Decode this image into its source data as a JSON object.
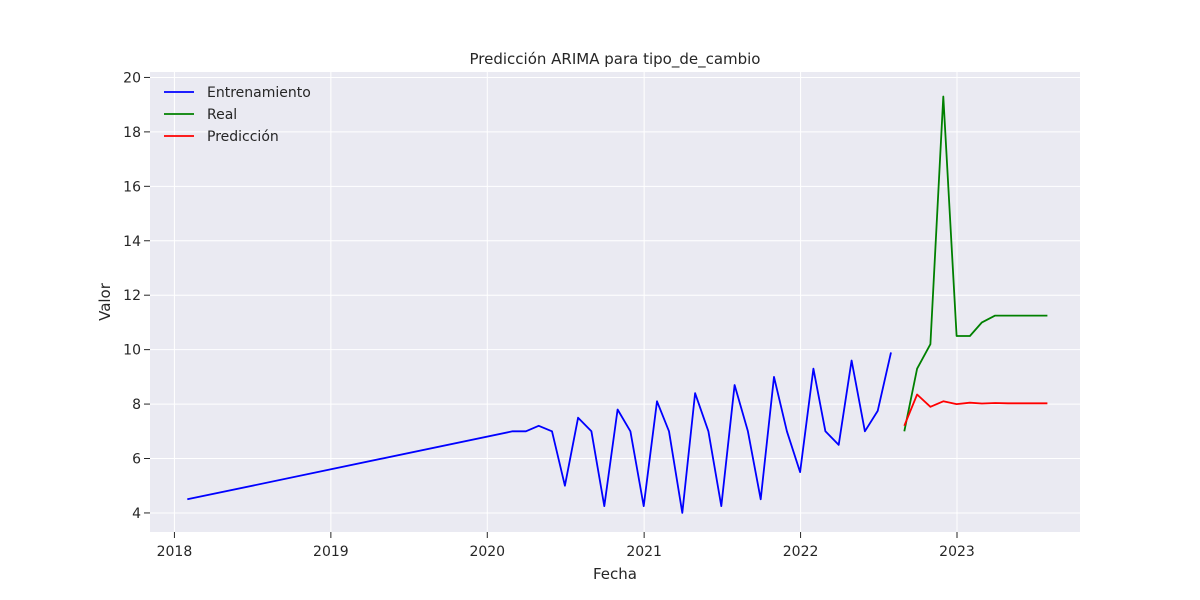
{
  "chart_data": {
    "type": "line",
    "title": "Predicción ARIMA para tipo_de_cambio",
    "xlabel": "Fecha",
    "ylabel": "Valor",
    "xlim": [
      "2017-11-05",
      "2023-10-15"
    ],
    "ylim": [
      3.3,
      20.2
    ],
    "x_ticks": [
      {
        "date": "2018-01-01",
        "label": "2018"
      },
      {
        "date": "2019-01-01",
        "label": "2019"
      },
      {
        "date": "2020-01-01",
        "label": "2020"
      },
      {
        "date": "2021-01-01",
        "label": "2021"
      },
      {
        "date": "2022-01-01",
        "label": "2022"
      },
      {
        "date": "2023-01-01",
        "label": "2023"
      }
    ],
    "y_ticks": [
      4,
      6,
      8,
      10,
      12,
      14,
      16,
      18,
      20
    ],
    "grid": true,
    "legend_position": "top-left",
    "series": [
      {
        "name": "Entrenamiento",
        "color": "#0000ff",
        "points": [
          [
            "2018-01-31",
            4.5
          ],
          [
            "2020-02-29",
            7.0
          ],
          [
            "2020-03-31",
            7.0
          ],
          [
            "2020-04-30",
            7.2
          ],
          [
            "2020-05-31",
            7.0
          ],
          [
            "2020-06-30",
            5.0
          ],
          [
            "2020-07-31",
            7.5
          ],
          [
            "2020-08-31",
            7.0
          ],
          [
            "2020-09-30",
            4.25
          ],
          [
            "2020-10-31",
            7.8
          ],
          [
            "2020-11-30",
            7.0
          ],
          [
            "2020-12-31",
            4.25
          ],
          [
            "2021-01-31",
            8.1
          ],
          [
            "2021-02-28",
            7.0
          ],
          [
            "2021-03-31",
            4.0
          ],
          [
            "2021-04-30",
            8.4
          ],
          [
            "2021-05-31",
            7.0
          ],
          [
            "2021-06-30",
            4.25
          ],
          [
            "2021-07-31",
            8.7
          ],
          [
            "2021-08-31",
            7.0
          ],
          [
            "2021-09-30",
            4.5
          ],
          [
            "2021-10-31",
            9.0
          ],
          [
            "2021-11-30",
            7.0
          ],
          [
            "2021-12-31",
            5.5
          ],
          [
            "2022-01-31",
            9.3
          ],
          [
            "2022-02-28",
            7.0
          ],
          [
            "2022-03-31",
            6.5
          ],
          [
            "2022-04-30",
            9.6
          ],
          [
            "2022-05-31",
            7.0
          ],
          [
            "2022-06-30",
            7.75
          ],
          [
            "2022-07-31",
            9.9
          ]
        ]
      },
      {
        "name": "Real",
        "color": "#008000",
        "points": [
          [
            "2022-08-31",
            7.0
          ],
          [
            "2022-09-30",
            9.3
          ],
          [
            "2022-10-31",
            10.2
          ],
          [
            "2022-11-30",
            19.3
          ],
          [
            "2022-12-31",
            10.5
          ],
          [
            "2023-01-31",
            10.5
          ],
          [
            "2023-02-28",
            11.0
          ],
          [
            "2023-03-31",
            11.25
          ],
          [
            "2023-04-30",
            11.25
          ],
          [
            "2023-05-31",
            11.25
          ],
          [
            "2023-06-30",
            11.25
          ],
          [
            "2023-07-31",
            11.25
          ]
        ]
      },
      {
        "name": "Predicción",
        "color": "#ff0000",
        "points": [
          [
            "2022-08-31",
            7.2
          ],
          [
            "2022-09-30",
            8.35
          ],
          [
            "2022-10-31",
            7.9
          ],
          [
            "2022-11-30",
            8.1
          ],
          [
            "2022-12-31",
            8.0
          ],
          [
            "2023-01-31",
            8.05
          ],
          [
            "2023-02-28",
            8.02
          ],
          [
            "2023-03-31",
            8.04
          ],
          [
            "2023-04-30",
            8.03
          ],
          [
            "2023-05-31",
            8.03
          ],
          [
            "2023-06-30",
            8.03
          ],
          [
            "2023-07-31",
            8.03
          ]
        ]
      }
    ]
  }
}
